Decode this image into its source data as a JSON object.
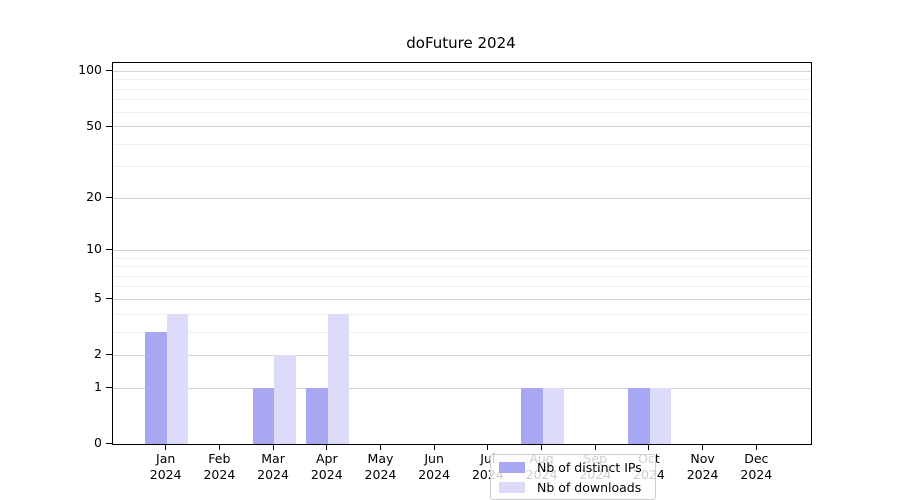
{
  "chart_data": {
    "type": "bar",
    "title": "doFuture 2024",
    "categories": [
      "Jan",
      "Feb",
      "Mar",
      "Apr",
      "May",
      "Jun",
      "Jul",
      "Aug",
      "Sep",
      "Oct",
      "Nov",
      "Dec"
    ],
    "x_tick_second_line": [
      "2024",
      "2024",
      "2024",
      "2024",
      "2024",
      "2024",
      "2024",
      "2024",
      "2024",
      "2024",
      "2024",
      "2024"
    ],
    "series": [
      {
        "name": "Nb of distinct IPs",
        "color": "#a9a6f2",
        "values": [
          3,
          0,
          1,
          1,
          0,
          0,
          0,
          1,
          0,
          1,
          0,
          0
        ]
      },
      {
        "name": "Nb of downloads",
        "color": "#dcdbf9",
        "values": [
          4,
          0,
          2,
          4,
          0,
          0,
          0,
          1,
          0,
          1,
          0,
          0
        ]
      }
    ],
    "xlabel": "",
    "ylabel": "",
    "y_scale": "log1p",
    "y_tick_labels": [
      "0",
      "1",
      "2",
      "5",
      "10",
      "20",
      "50",
      "100"
    ],
    "y_ticks": [
      0,
      1,
      2,
      5,
      10,
      20,
      50,
      100
    ],
    "y_minor_gridlines": [
      3,
      4,
      6,
      7,
      8,
      9,
      30,
      40,
      60,
      70,
      80,
      90
    ],
    "ylim": [
      0,
      111
    ],
    "grid": true,
    "legend_position": "bottom-center"
  },
  "colors": {
    "major_grid": "#d2d2d2",
    "minor_grid": "#eeeeee",
    "axis": "#000000",
    "text": "#000000",
    "legend_border": "#cccccc",
    "background": "#ffffff"
  }
}
